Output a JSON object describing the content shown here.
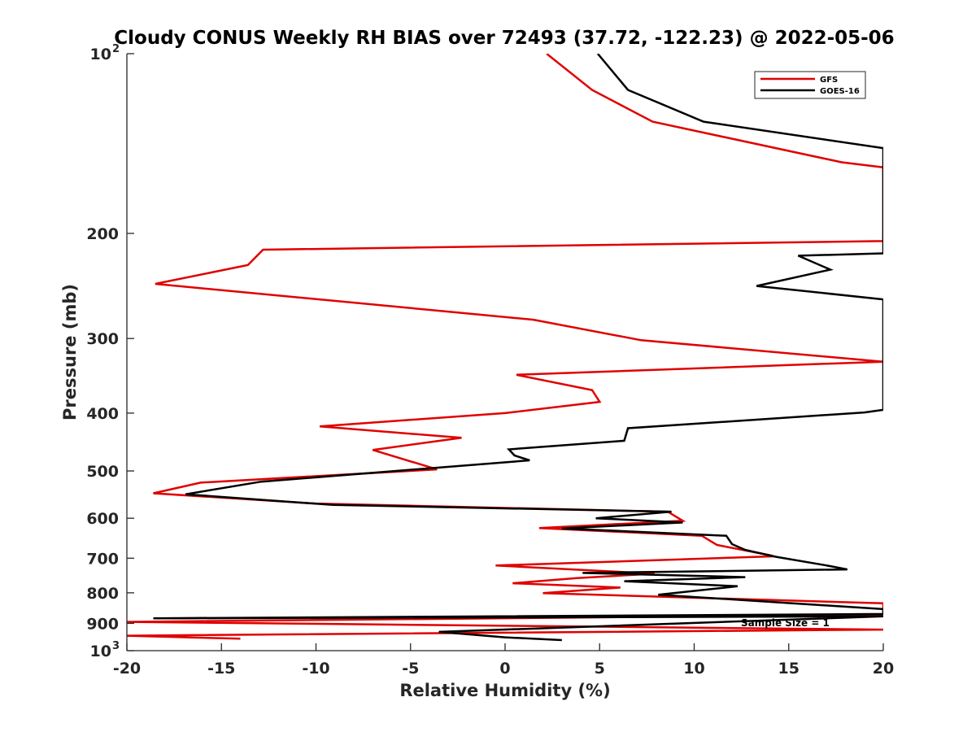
{
  "chart_data": {
    "type": "line",
    "title": "Cloudy CONUS Weekly RH BIAS over 72493 (37.72, -122.23) @ 2022-05-06",
    "xlabel": "Relative Humidity (%)",
    "ylabel": "Pressure (mb)",
    "xlim": [
      -20,
      20
    ],
    "ylim": [
      100,
      1000
    ],
    "y_scale": "log",
    "y_reversed": true,
    "xticks": [
      -20,
      -15,
      -10,
      -5,
      0,
      5,
      10,
      15,
      20
    ],
    "xtick_labels": [
      "-20",
      "-15",
      "-10",
      "-5",
      "0",
      "5",
      "10",
      "15",
      "20"
    ],
    "yticks": [
      {
        "value": 100,
        "label": "10",
        "sup": "2"
      },
      {
        "value": 200,
        "label": "200",
        "sup": ""
      },
      {
        "value": 300,
        "label": "300",
        "sup": ""
      },
      {
        "value": 400,
        "label": "400",
        "sup": ""
      },
      {
        "value": 500,
        "label": "500",
        "sup": ""
      },
      {
        "value": 600,
        "label": "600",
        "sup": ""
      },
      {
        "value": 700,
        "label": "700",
        "sup": ""
      },
      {
        "value": 800,
        "label": "800",
        "sup": ""
      },
      {
        "value": 900,
        "label": "900",
        "sup": ""
      },
      {
        "value": 1000,
        "label": "10",
        "sup": "3"
      }
    ],
    "grid": false,
    "legend_position": "top-right",
    "annotation": "Sample Size = 1",
    "series": [
      {
        "name": "GFS",
        "color": "#e00000",
        "points": [
          [
            2.2,
            100
          ],
          [
            4.6,
            115
          ],
          [
            7.8,
            130
          ],
          [
            17.8,
            152
          ],
          [
            20.0,
            155
          ],
          [
            20.0,
            206
          ],
          [
            -12.8,
            213
          ],
          [
            -13.6,
            226
          ],
          [
            -18.5,
            243
          ],
          [
            1.5,
            279
          ],
          [
            7.2,
            302
          ],
          [
            20.0,
            328
          ],
          [
            0.6,
            345
          ],
          [
            4.6,
            366
          ],
          [
            5.0,
            383
          ],
          [
            0.0,
            400
          ],
          [
            -9.8,
            421
          ],
          [
            -2.3,
            440
          ],
          [
            -7.0,
            461
          ],
          [
            -3.6,
            497
          ],
          [
            -16.1,
            523
          ],
          [
            -18.6,
            545
          ],
          [
            -10.0,
            567
          ],
          [
            8.6,
            585
          ],
          [
            9.4,
            606
          ],
          [
            1.8,
            623
          ],
          [
            10.4,
            642
          ],
          [
            11.2,
            665
          ],
          [
            14.0,
            692
          ],
          [
            14.2,
            695
          ],
          [
            -0.5,
            720
          ],
          [
            7.9,
            743
          ],
          [
            3.8,
            756
          ],
          [
            0.4,
            771
          ],
          [
            6.1,
            784
          ],
          [
            2.0,
            801
          ],
          [
            20.0,
            833
          ],
          [
            20.0,
            870
          ],
          [
            -20.0,
            895
          ],
          [
            20.0,
            922
          ],
          [
            -20.0,
            944
          ],
          [
            -14.0,
            955
          ]
        ]
      },
      {
        "name": "GOES-16",
        "color": "#000000",
        "points": [
          [
            4.9,
            100
          ],
          [
            6.5,
            115
          ],
          [
            10.5,
            130
          ],
          [
            20.0,
            144
          ],
          [
            20.0,
            216
          ],
          [
            15.5,
            218
          ],
          [
            17.2,
            230
          ],
          [
            13.3,
            245
          ],
          [
            20.0,
            258
          ],
          [
            20.0,
            395
          ],
          [
            19.0,
            399
          ],
          [
            6.5,
            424
          ],
          [
            6.3,
            445
          ],
          [
            0.2,
            460
          ],
          [
            0.5,
            471
          ],
          [
            1.3,
            480
          ],
          [
            -12.9,
            521
          ],
          [
            -16.9,
            547
          ],
          [
            -9.1,
            570
          ],
          [
            8.8,
            585
          ],
          [
            4.8,
            600
          ],
          [
            9.4,
            610
          ],
          [
            3.0,
            624
          ],
          [
            11.7,
            642
          ],
          [
            12.0,
            663
          ],
          [
            12.7,
            678
          ],
          [
            14.3,
            696
          ],
          [
            16.9,
            719
          ],
          [
            18.1,
            731
          ],
          [
            4.1,
            741
          ],
          [
            12.7,
            753
          ],
          [
            6.3,
            765
          ],
          [
            12.3,
            780
          ],
          [
            8.1,
            806
          ],
          [
            20.0,
            852
          ],
          [
            20.0,
            868
          ],
          [
            -18.6,
            883
          ],
          [
            20.0,
            876
          ],
          [
            -3.5,
            930
          ],
          [
            0.0,
            950
          ],
          [
            3.0,
            960
          ]
        ]
      }
    ]
  }
}
